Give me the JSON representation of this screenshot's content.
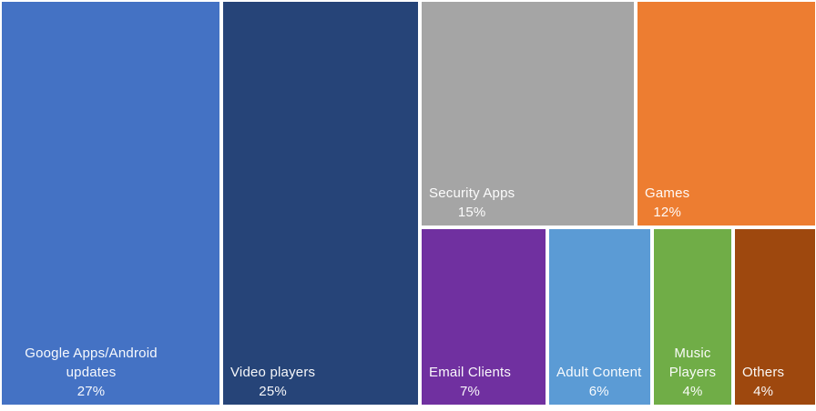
{
  "chart_data": {
    "type": "treemap",
    "title": "",
    "legend": "none",
    "background_color": "#FFFFFF",
    "label_text_color": "#FFFFFF",
    "items": [
      {
        "label": "Google Apps/Android updates",
        "value": 27,
        "value_label": "27%",
        "color": "#4472C4"
      },
      {
        "label": "Video players",
        "value": 25,
        "value_label": "25%",
        "color": "#264478"
      },
      {
        "label": "Security Apps",
        "value": 15,
        "value_label": "15%",
        "color": "#A5A5A5"
      },
      {
        "label": "Games",
        "value": 12,
        "value_label": "12%",
        "color": "#ED7D31"
      },
      {
        "label": "Email Clients",
        "value": 7,
        "value_label": "7%",
        "color": "#7030A0"
      },
      {
        "label": "Adult Content",
        "value": 6,
        "value_label": "6%",
        "color": "#5B9BD5"
      },
      {
        "label": "Music Players",
        "value": 4,
        "value_label": "4%",
        "color": "#70AD47"
      },
      {
        "label": "Others",
        "value": 4,
        "value_label": "4%",
        "color": "#9E480E"
      }
    ]
  }
}
